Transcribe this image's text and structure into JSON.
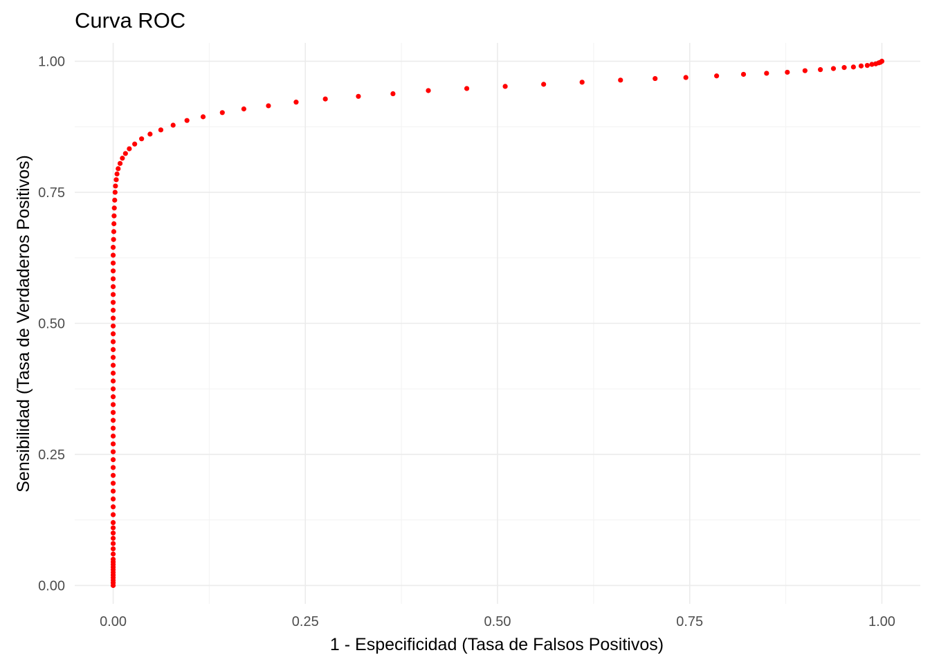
{
  "chart_data": {
    "type": "scatter",
    "title": "Curva ROC",
    "xlabel": "1 - Especificidad (Tasa de Falsos Positivos)",
    "ylabel": "Sensibilidad (Tasa de Verdaderos Positivos)",
    "xlim": [
      -0.05,
      1.05
    ],
    "ylim": [
      -0.035,
      1.035
    ],
    "x_ticks": [
      0,
      0.25,
      0.5,
      0.75,
      1
    ],
    "x_tick_labels": [
      "0.00",
      "0.25",
      "0.50",
      "0.75",
      "1.00"
    ],
    "y_ticks": [
      0,
      0.25,
      0.5,
      0.75,
      1
    ],
    "y_tick_labels": [
      "0.00",
      "0.25",
      "0.50",
      "0.75",
      "1.00"
    ],
    "grid": true,
    "legend": "none",
    "point_color": "#ff0000",
    "series": [
      {
        "points": [
          [
            0,
            0
          ],
          [
            0,
            0.005
          ],
          [
            0,
            0.01
          ],
          [
            0,
            0.015
          ],
          [
            0,
            0.02
          ],
          [
            0,
            0.025
          ],
          [
            0,
            0.03
          ],
          [
            0,
            0.035
          ],
          [
            0,
            0.04
          ],
          [
            0,
            0.045
          ],
          [
            0,
            0.05
          ],
          [
            0,
            0.06
          ],
          [
            0,
            0.07
          ],
          [
            0,
            0.08
          ],
          [
            0,
            0.09
          ],
          [
            0,
            0.1
          ],
          [
            0,
            0.11
          ],
          [
            0,
            0.12
          ],
          [
            0,
            0.135
          ],
          [
            0,
            0.15
          ],
          [
            0,
            0.165
          ],
          [
            0,
            0.18
          ],
          [
            0,
            0.195
          ],
          [
            0,
            0.21
          ],
          [
            0,
            0.225
          ],
          [
            0,
            0.24
          ],
          [
            0,
            0.255
          ],
          [
            0,
            0.27
          ],
          [
            0,
            0.285
          ],
          [
            0,
            0.3
          ],
          [
            0,
            0.315
          ],
          [
            0,
            0.33
          ],
          [
            0,
            0.345
          ],
          [
            0,
            0.36
          ],
          [
            0,
            0.375
          ],
          [
            0,
            0.39
          ],
          [
            0,
            0.405
          ],
          [
            0,
            0.42
          ],
          [
            0,
            0.435
          ],
          [
            0,
            0.45
          ],
          [
            0,
            0.465
          ],
          [
            0,
            0.48
          ],
          [
            0,
            0.495
          ],
          [
            0,
            0.51
          ],
          [
            0,
            0.525
          ],
          [
            0,
            0.54
          ],
          [
            0,
            0.555
          ],
          [
            0,
            0.57
          ],
          [
            0,
            0.585
          ],
          [
            0,
            0.6
          ],
          [
            0,
            0.615
          ],
          [
            0,
            0.63
          ],
          [
            0,
            0.645
          ],
          [
            0.0005,
            0.66
          ],
          [
            0.0008,
            0.675
          ],
          [
            0.001,
            0.69
          ],
          [
            0.0012,
            0.705
          ],
          [
            0.0015,
            0.72
          ],
          [
            0.002,
            0.735
          ],
          [
            0.0025,
            0.75
          ],
          [
            0.003,
            0.762
          ],
          [
            0.004,
            0.774
          ],
          [
            0.005,
            0.785
          ],
          [
            0.0065,
            0.795
          ],
          [
            0.009,
            0.805
          ],
          [
            0.012,
            0.815
          ],
          [
            0.016,
            0.824
          ],
          [
            0.021,
            0.833
          ],
          [
            0.028,
            0.842
          ],
          [
            0.037,
            0.852
          ],
          [
            0.048,
            0.861
          ],
          [
            0.062,
            0.869
          ],
          [
            0.078,
            0.878
          ],
          [
            0.096,
            0.887
          ],
          [
            0.117,
            0.894
          ],
          [
            0.142,
            0.902
          ],
          [
            0.17,
            0.909
          ],
          [
            0.202,
            0.915
          ],
          [
            0.238,
            0.922
          ],
          [
            0.276,
            0.928
          ],
          [
            0.319,
            0.933
          ],
          [
            0.364,
            0.938
          ],
          [
            0.41,
            0.944
          ],
          [
            0.46,
            0.948
          ],
          [
            0.51,
            0.952
          ],
          [
            0.56,
            0.956
          ],
          [
            0.61,
            0.96
          ],
          [
            0.66,
            0.964
          ],
          [
            0.705,
            0.967
          ],
          [
            0.745,
            0.969
          ],
          [
            0.785,
            0.972
          ],
          [
            0.82,
            0.975
          ],
          [
            0.85,
            0.977
          ],
          [
            0.877,
            0.979
          ],
          [
            0.9,
            0.982
          ],
          [
            0.92,
            0.984
          ],
          [
            0.937,
            0.986
          ],
          [
            0.951,
            0.988
          ],
          [
            0.963,
            0.989
          ],
          [
            0.973,
            0.991
          ],
          [
            0.981,
            0.992
          ],
          [
            0.987,
            0.994
          ],
          [
            0.992,
            0.995
          ],
          [
            0.996,
            0.997
          ],
          [
            0.998,
            0.998
          ],
          [
            1,
            1
          ]
        ]
      }
    ]
  }
}
